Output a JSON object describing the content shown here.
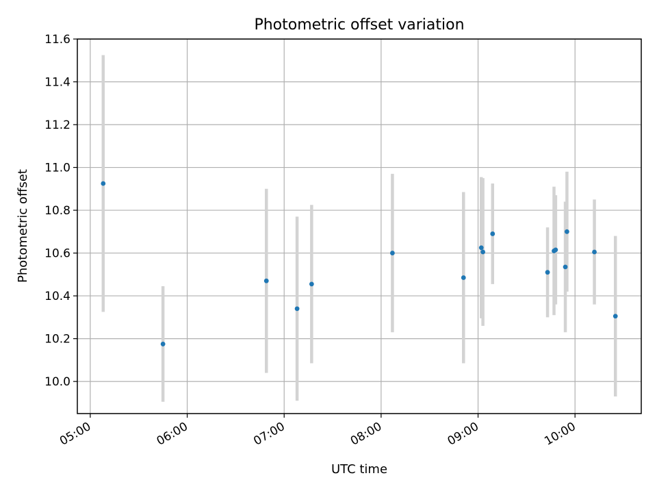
{
  "chart_data": {
    "type": "scatter",
    "title": "Photometric offset variation",
    "xlabel": "UTC time",
    "ylabel": "Photometric offset",
    "x_axis_type": "time",
    "xlim": [
      "04:52",
      "10:41"
    ],
    "ylim": [
      9.85,
      11.6
    ],
    "x_ticks": [
      "05:00",
      "06:00",
      "07:00",
      "08:00",
      "09:00",
      "10:00"
    ],
    "y_ticks": [
      10.0,
      10.2,
      10.4,
      10.6,
      10.8,
      11.0,
      11.2,
      11.4,
      11.6
    ],
    "y_tick_labels": [
      "10.0",
      "10.2",
      "10.4",
      "10.6",
      "10.8",
      "11.0",
      "11.2",
      "11.4",
      "11.6"
    ],
    "grid": true,
    "point_color": "#1f77b4",
    "errorbar_color": "#d3d3d3",
    "points": [
      {
        "x": "05:08",
        "y": 10.925,
        "err": 0.6
      },
      {
        "x": "05:45",
        "y": 10.175,
        "err": 0.27
      },
      {
        "x": "06:49",
        "y": 10.47,
        "err": 0.43
      },
      {
        "x": "07:08",
        "y": 10.34,
        "err": 0.43
      },
      {
        "x": "07:17",
        "y": 10.455,
        "err": 0.37
      },
      {
        "x": "08:07",
        "y": 10.6,
        "err": 0.37
      },
      {
        "x": "08:51",
        "y": 10.485,
        "err": 0.4
      },
      {
        "x": "09:02",
        "y": 10.625,
        "err": 0.33
      },
      {
        "x": "09:03",
        "y": 10.605,
        "err": 0.345
      },
      {
        "x": "09:09",
        "y": 10.69,
        "err": 0.235
      },
      {
        "x": "09:43",
        "y": 10.51,
        "err": 0.21
      },
      {
        "x": "09:47",
        "y": 10.61,
        "err": 0.3
      },
      {
        "x": "09:48",
        "y": 10.615,
        "err": 0.255
      },
      {
        "x": "09:54",
        "y": 10.535,
        "err": 0.305
      },
      {
        "x": "09:55",
        "y": 10.7,
        "err": 0.28
      },
      {
        "x": "10:12",
        "y": 10.605,
        "err": 0.245
      },
      {
        "x": "10:25",
        "y": 10.305,
        "err": 0.375
      }
    ]
  }
}
